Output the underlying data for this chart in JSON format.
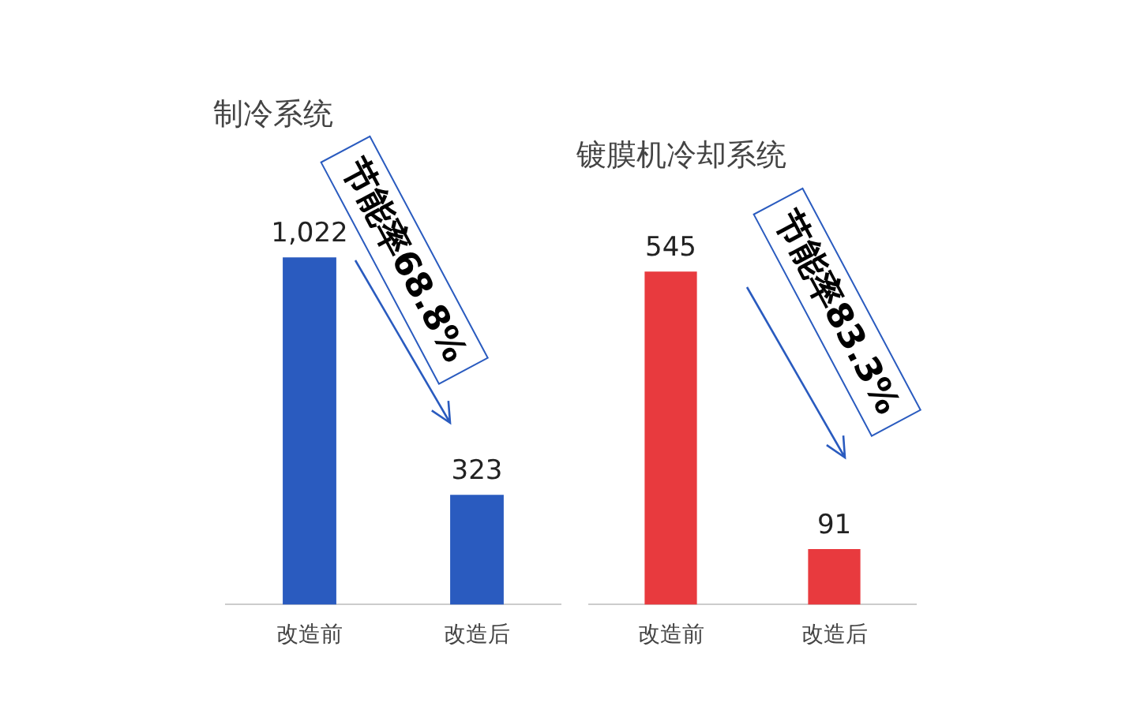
{
  "chart_data": [
    {
      "type": "bar",
      "title": "制冷系统",
      "categories": [
        "改造前",
        "改造后"
      ],
      "values": [
        1022,
        323
      ],
      "value_labels": [
        "1,022",
        "323"
      ],
      "color": "#2a5bbf",
      "annotations": [
        "节能率68.8%"
      ]
    },
    {
      "type": "bar",
      "title": "镀膜机冷却系统",
      "categories": [
        "改造前",
        "改造后"
      ],
      "values": [
        545,
        91
      ],
      "value_labels": [
        "545",
        "91"
      ],
      "color": "#e83a3e",
      "annotations": [
        "节能率83.3%"
      ]
    }
  ]
}
